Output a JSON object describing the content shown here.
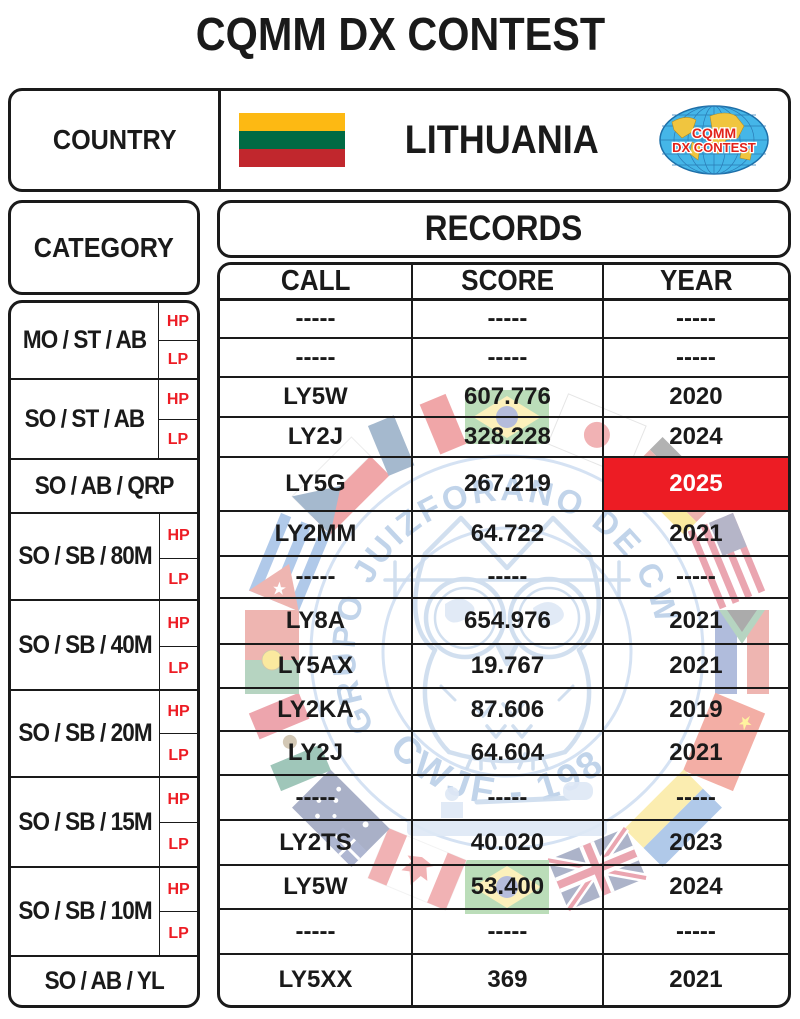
{
  "title": "CQMM DX CONTEST",
  "country": {
    "label": "COUNTRY",
    "name": "LITHUANIA",
    "flag_colors": [
      "#FDB913",
      "#006A44",
      "#C1272D"
    ],
    "logo": {
      "line1": "CQMM",
      "line2": "DX CONTEST"
    }
  },
  "categories": {
    "header": "CATEGORY",
    "groups": [
      {
        "label": "MO / ST / AB",
        "power": [
          "HP",
          "LP"
        ]
      },
      {
        "label": "SO / ST / AB",
        "power": [
          "HP",
          "LP"
        ]
      },
      {
        "label": "SO / AB / QRP",
        "power": []
      },
      {
        "label": "SO / SB / 80M",
        "power": [
          "HP",
          "LP"
        ]
      },
      {
        "label": "SO / SB / 40M",
        "power": [
          "HP",
          "LP"
        ]
      },
      {
        "label": "SO / SB / 20M",
        "power": [
          "HP",
          "LP"
        ]
      },
      {
        "label": "SO / SB / 15M",
        "power": [
          "HP",
          "LP"
        ]
      },
      {
        "label": "SO / SB / 10M",
        "power": [
          "HP",
          "LP"
        ]
      },
      {
        "label": "SO / AB / YL",
        "power": []
      }
    ]
  },
  "records": {
    "header": "RECORDS",
    "columns": [
      "CALL",
      "SCORE",
      "YEAR"
    ],
    "rows": [
      {
        "call": "-----",
        "score": "-----",
        "year": "-----"
      },
      {
        "call": "-----",
        "score": "-----",
        "year": "-----"
      },
      {
        "call": "LY5W",
        "score": "607.776",
        "year": "2020"
      },
      {
        "call": "LY2J",
        "score": "328.228",
        "year": "2024"
      },
      {
        "call": "LY5G",
        "score": "267.219",
        "year": "2025",
        "highlight_year": true
      },
      {
        "call": "LY2MM",
        "score": "64.722",
        "year": "2021"
      },
      {
        "call": "-----",
        "score": "-----",
        "year": "-----"
      },
      {
        "call": "LY8A",
        "score": "654.976",
        "year": "2021"
      },
      {
        "call": "LY5AX",
        "score": "19.767",
        "year": "2021"
      },
      {
        "call": "LY2KA",
        "score": "87.606",
        "year": "2019"
      },
      {
        "call": "LY2J",
        "score": "64.604",
        "year": "2021"
      },
      {
        "call": "-----",
        "score": "-----",
        "year": "-----"
      },
      {
        "call": "LY2TS",
        "score": "40.020",
        "year": "2023"
      },
      {
        "call": "LY5W",
        "score": "53.400",
        "year": "2024"
      },
      {
        "call": "-----",
        "score": "-----",
        "year": "-----"
      },
      {
        "call": "LY5XX",
        "score": "369",
        "year": "2021"
      }
    ]
  },
  "watermark": {
    "top_text": "GRUPO JUIZFORANO DE CW",
    "bottom_text": "CWJF - 1985",
    "flags": [
      "brazil",
      "japan",
      "germany",
      "usa",
      "southafrica",
      "china",
      "ukraine",
      "uk",
      "brazil",
      "canada",
      "australia",
      "mexico",
      "portugal",
      "cuba",
      "czech",
      "france"
    ]
  },
  "colors": {
    "accent_red": "#ED1C24",
    "highlight_bg": "#ED1C24",
    "highlight_text": "#FFFFFF",
    "watermark_blue": "#7AA2D2"
  }
}
